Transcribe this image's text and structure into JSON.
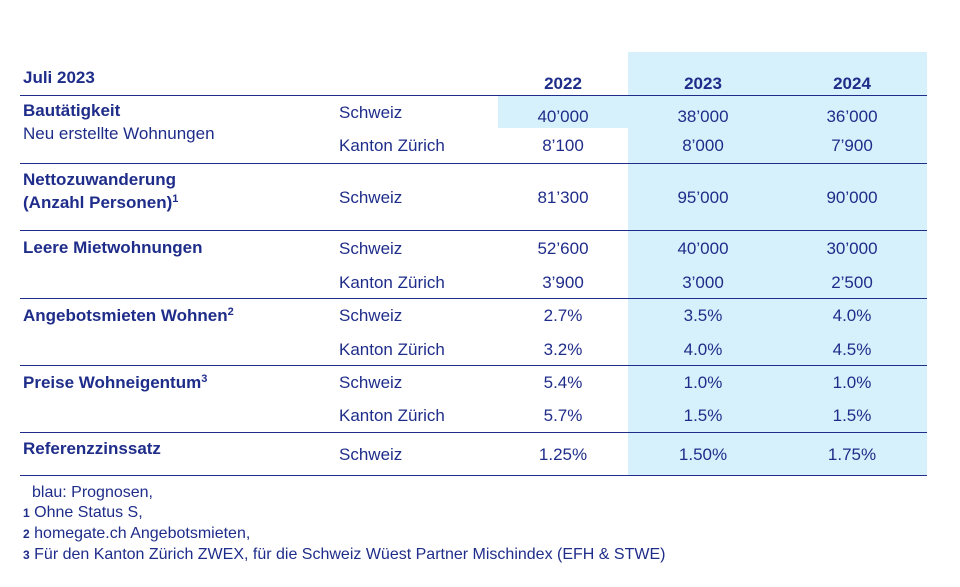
{
  "header": {
    "date": "Juli 2023",
    "years": [
      "2022",
      "2023",
      "2024"
    ]
  },
  "rows": [
    {
      "label": "Bautätigkeit",
      "sublabel": "Neu erstellte Wohnungen",
      "entries": [
        {
          "region": "Schweiz",
          "values": [
            "40’000",
            "38’000",
            "36’000"
          ]
        },
        {
          "region": "Kanton Zürich",
          "values": [
            "8’100",
            "8’000",
            "7’900"
          ]
        }
      ]
    },
    {
      "label_line1": "Nettozuwanderung",
      "label_line2": "(Anzahl Personen)",
      "footnote": "1",
      "entries": [
        {
          "region": "Schweiz",
          "values": [
            "81’300",
            "95’000",
            "90’000"
          ]
        }
      ]
    },
    {
      "label": "Leere Mietwohnungen",
      "entries": [
        {
          "region": "Schweiz",
          "values": [
            "52’600",
            "40’000",
            "30’000"
          ]
        },
        {
          "region": "Kanton Zürich",
          "values": [
            "3’900",
            "3’000",
            "2’500"
          ]
        }
      ]
    },
    {
      "label": "Angebotsmieten Wohnen",
      "footnote": "2",
      "entries": [
        {
          "region": "Schweiz",
          "values": [
            "2.7%",
            "3.5%",
            "4.0%"
          ]
        },
        {
          "region": "Kanton Zürich",
          "values": [
            "3.2%",
            "4.0%",
            "4.5%"
          ]
        }
      ]
    },
    {
      "label": "Preise Wohneigentum",
      "footnote": "3",
      "entries": [
        {
          "region": "Schweiz",
          "values": [
            "5.4%",
            "1.0%",
            "1.0%"
          ]
        },
        {
          "region": "Kanton Zürich",
          "values": [
            "5.7%",
            "1.5%",
            "1.5%"
          ]
        }
      ]
    },
    {
      "label": "Referenzzinssatz",
      "entries": [
        {
          "region": "Schweiz",
          "values": [
            "1.25%",
            "1.50%",
            "1.75%"
          ]
        }
      ]
    }
  ],
  "footnotes": {
    "legend": "blau: Prognosen,",
    "notes": [
      {
        "mark": "1",
        "text": "Ohne Status S,"
      },
      {
        "mark": "2",
        "text": "homegate.ch Angebotsmieten,"
      },
      {
        "mark": "3",
        "text": "Für den Kanton Zürich ZWEX, für die Schweiz Wüest Partner Mischindex (EFH & STWE)"
      }
    ]
  },
  "colors": {
    "text": "#1f2d8a",
    "forecast_shading": "#d6f1fb"
  }
}
